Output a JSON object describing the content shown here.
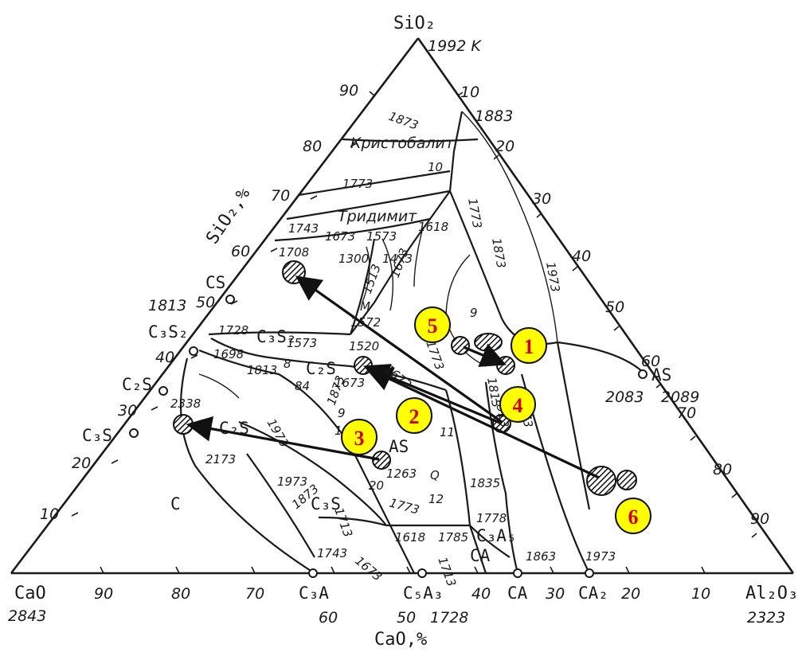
{
  "corners": {
    "top": {
      "label": "SiO₂",
      "temp": "1992 K"
    },
    "left": {
      "label": "CaO",
      "temp": "2843"
    },
    "right": {
      "label": "Al₂O₃",
      "temp": "2323"
    }
  },
  "axes": {
    "left_axis_title": "SiO₂,%",
    "bottom_axis_title": "CaO,%"
  },
  "left_ticks": [
    "90",
    "80",
    "70",
    "60",
    "50",
    "40",
    "30",
    "20",
    "10"
  ],
  "right_ticks": [
    "10",
    "20",
    "30",
    "40",
    "50",
    "60",
    "70",
    "80",
    "90"
  ],
  "bottom_ticks": [
    "90",
    "80",
    "70",
    "60",
    "50",
    "40",
    "30",
    "20",
    "10"
  ],
  "compounds": {
    "CS": "CS",
    "CS_temp": "1813",
    "C3S2": "C₃S₂",
    "C2S": "C₂S",
    "C3S": "C₃S",
    "C3A": "C₃A",
    "C5A3": "C₅A₃",
    "C5A3_temp": "1728",
    "CA": "CA",
    "CA2": "CA₂",
    "AS": "AS",
    "AS_temp1": "2083",
    "AS_temp2": "2089"
  },
  "fields": {
    "cristobalite": "Кристобалит",
    "tridymite": "Тридимит",
    "C": "C",
    "C2S_field": "C₂S",
    "C3S_field": "C₃S",
    "C3S2_field": "C₃S₂",
    "C2S2_field": "C₂S",
    "AS_field": "AS",
    "C3A5_field": "C₃A₅",
    "CA_field": "CA"
  },
  "isotherms": [
    "1873",
    "1883",
    "1773",
    "10",
    "1743",
    "1673",
    "1573",
    "1618",
    "1300",
    "1473",
    "1708",
    "1728",
    "1573",
    "1572",
    "1520",
    "1698",
    "1813",
    "1973",
    "1673",
    "2338",
    "2173",
    "1973",
    "1873",
    "1713",
    "1743",
    "1673",
    "1618",
    "1785",
    "1713",
    "1773",
    "1835",
    "1778",
    "1863",
    "1973",
    "1913",
    "1773",
    "1873",
    "1973",
    "1513",
    "1673",
    "1773",
    "1813",
    "1673",
    "1973",
    "1873",
    "1263"
  ],
  "point_labels": [
    "9",
    "8",
    "84",
    "9",
    "18",
    "20",
    "11",
    "12",
    "Q",
    "M"
  ],
  "markers": [
    {
      "id": "1",
      "label": "1"
    },
    {
      "id": "2",
      "label": "2"
    },
    {
      "id": "3",
      "label": "3"
    },
    {
      "id": "4",
      "label": "4"
    },
    {
      "id": "5",
      "label": "5"
    },
    {
      "id": "6",
      "label": "6"
    }
  ],
  "colors": {
    "marker_fill": "#ffff00",
    "marker_text": "#d40000",
    "line": "#1a1a1a"
  }
}
